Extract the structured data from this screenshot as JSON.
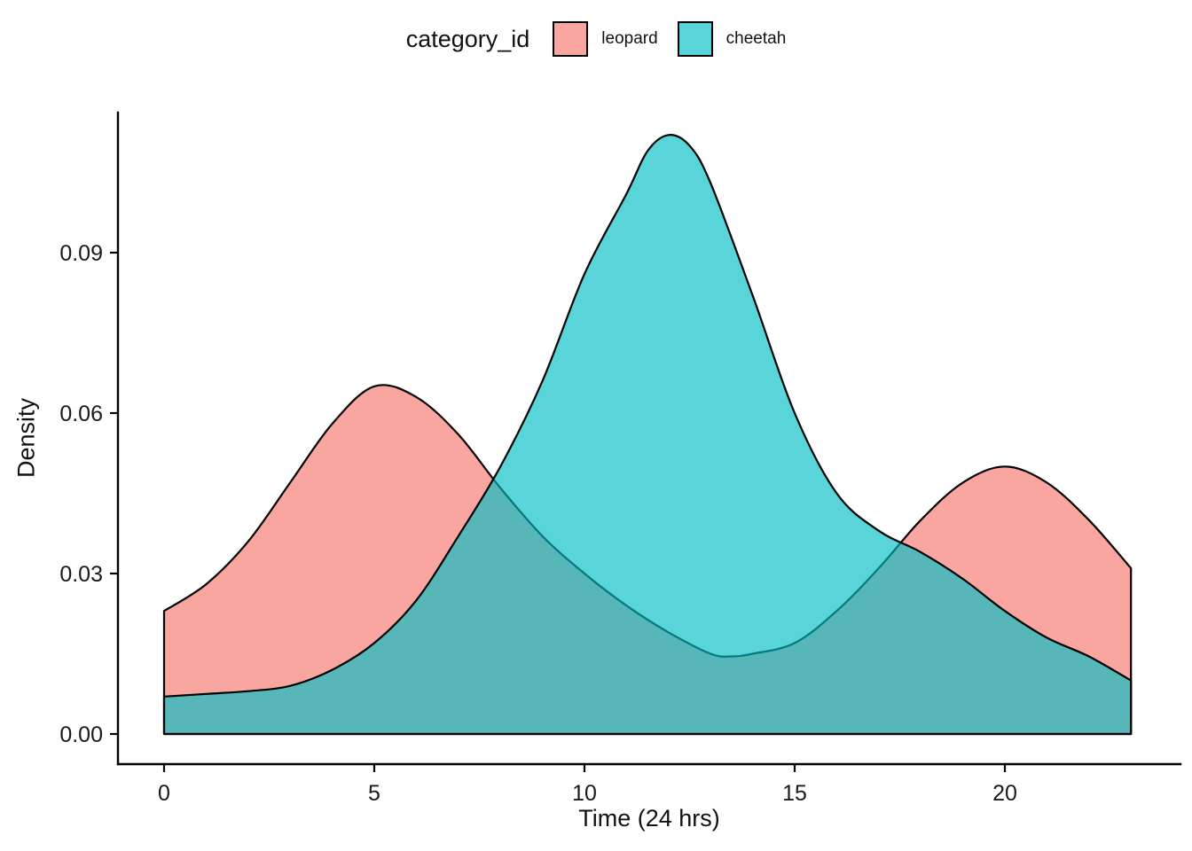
{
  "legend": {
    "title": "category_id",
    "items": [
      {
        "label": "leopard",
        "color": "#F8766D",
        "fill_opacity": 0.65
      },
      {
        "label": "cheetah",
        "color": "#00BFC4",
        "fill_opacity": 0.65
      }
    ]
  },
  "axes": {
    "x_label": "Time (24 hrs)",
    "y_label": "Density",
    "x_ticks": [
      {
        "value": 0,
        "label": "0"
      },
      {
        "value": 5,
        "label": "5"
      },
      {
        "value": 10,
        "label": "10"
      },
      {
        "value": 15,
        "label": "15"
      },
      {
        "value": 20,
        "label": "20"
      }
    ],
    "y_ticks": [
      {
        "value": 0.0,
        "label": "0.00"
      },
      {
        "value": 0.03,
        "label": "0.03"
      },
      {
        "value": 0.06,
        "label": "0.06"
      },
      {
        "value": 0.09,
        "label": "0.09"
      }
    ]
  },
  "chart_data": {
    "type": "area",
    "subtype": "density",
    "title": "",
    "xlabel": "Time (24 hrs)",
    "ylabel": "Density",
    "xlim": [
      0,
      23
    ],
    "ylim": [
      0,
      0.116
    ],
    "legend_position": "top",
    "grid": false,
    "stroke_color": "#000000",
    "series": [
      {
        "name": "leopard",
        "color": "#F8766D",
        "fill_opacity": 0.65,
        "points": [
          [
            0,
            0.023
          ],
          [
            1,
            0.028
          ],
          [
            2,
            0.036
          ],
          [
            3,
            0.047
          ],
          [
            4,
            0.058
          ],
          [
            5,
            0.065
          ],
          [
            6,
            0.063
          ],
          [
            7,
            0.056
          ],
          [
            8,
            0.046
          ],
          [
            9,
            0.037
          ],
          [
            10,
            0.03
          ],
          [
            11,
            0.024
          ],
          [
            12,
            0.019
          ],
          [
            13,
            0.015
          ],
          [
            13.5,
            0.0145
          ],
          [
            14,
            0.015
          ],
          [
            15,
            0.017
          ],
          [
            16,
            0.023
          ],
          [
            17,
            0.031
          ],
          [
            18,
            0.04
          ],
          [
            19,
            0.047
          ],
          [
            20,
            0.05
          ],
          [
            21,
            0.047
          ],
          [
            22,
            0.04
          ],
          [
            23,
            0.031
          ]
        ]
      },
      {
        "name": "cheetah",
        "color": "#00BFC4",
        "fill_opacity": 0.65,
        "points": [
          [
            0,
            0.007
          ],
          [
            1,
            0.0075
          ],
          [
            2,
            0.008
          ],
          [
            3,
            0.009
          ],
          [
            4,
            0.012
          ],
          [
            5,
            0.017
          ],
          [
            6,
            0.025
          ],
          [
            7,
            0.037
          ],
          [
            8,
            0.05
          ],
          [
            9,
            0.066
          ],
          [
            10,
            0.086
          ],
          [
            11,
            0.101
          ],
          [
            11.5,
            0.109
          ],
          [
            12,
            0.112
          ],
          [
            12.5,
            0.11
          ],
          [
            13,
            0.103
          ],
          [
            14,
            0.082
          ],
          [
            15,
            0.06
          ],
          [
            16,
            0.045
          ],
          [
            17,
            0.038
          ],
          [
            18,
            0.034
          ],
          [
            19,
            0.029
          ],
          [
            20,
            0.023
          ],
          [
            21,
            0.018
          ],
          [
            22,
            0.0145
          ],
          [
            23,
            0.01
          ]
        ]
      }
    ]
  }
}
